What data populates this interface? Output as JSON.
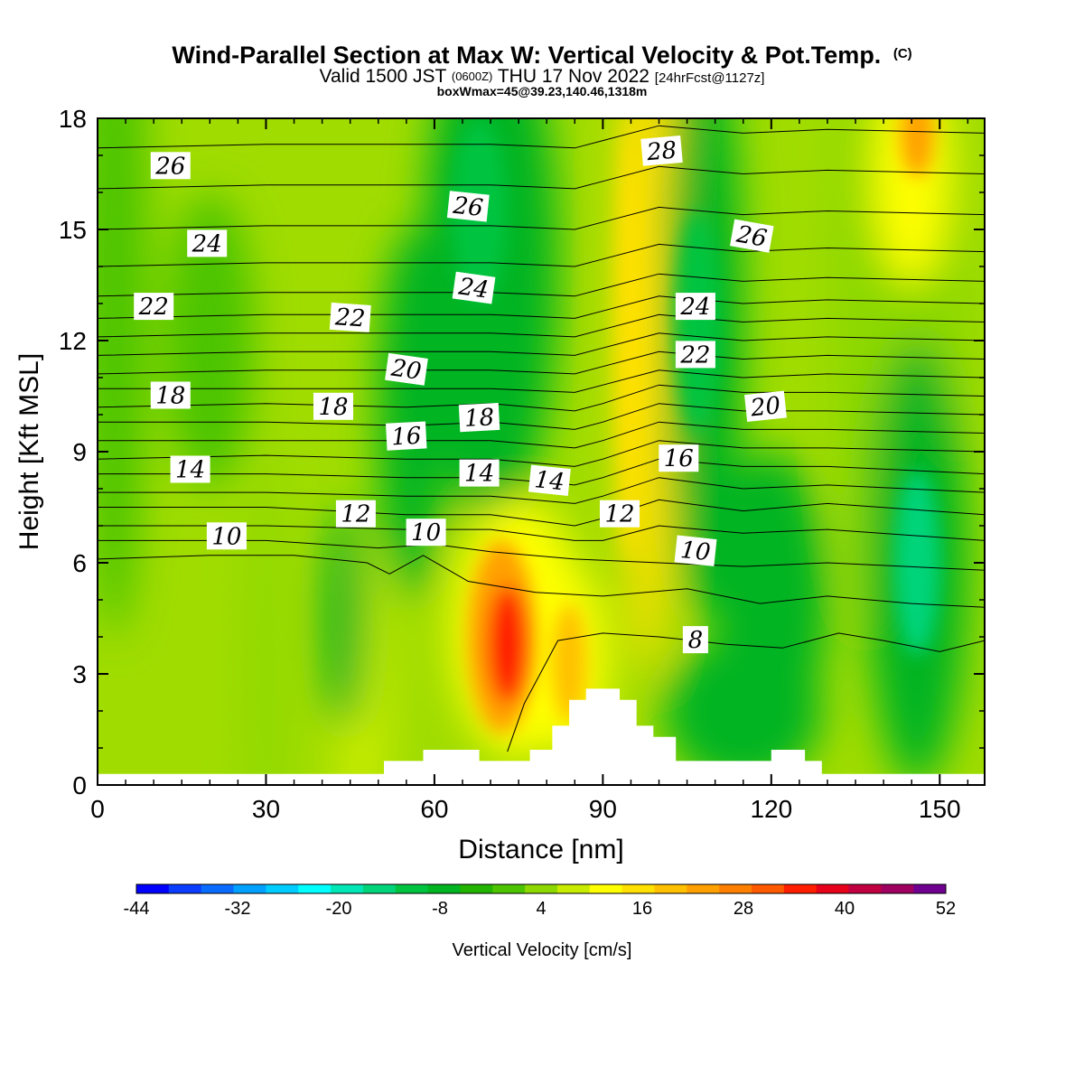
{
  "title": {
    "main": "Wind-Parallel Section at Max W: Vertical Velocity & Pot.Temp.",
    "main_mark": "(C)",
    "valid_prefix": "Valid 1500 JST",
    "valid_utc": "(0600Z)",
    "valid_date": "THU 17 Nov 2022",
    "fcst": "[24hrFcst@1127z]",
    "boxw": "boxWmax=45@39.23,140.46,1318m"
  },
  "chart_data": {
    "type": "heatmap",
    "xlabel": "Distance [nm]",
    "ylabel": "Height [Kft MSL]",
    "xlim": [
      0,
      158
    ],
    "ylim": [
      0,
      18
    ],
    "x_ticks": [
      "0",
      "30",
      "60",
      "90",
      "120",
      "150"
    ],
    "y_ticks": [
      "0",
      "3",
      "6",
      "9",
      "12",
      "15",
      "18"
    ],
    "colorbar": {
      "label": "Vertical Velocity [cm/s]",
      "ticks": [
        "-44",
        "-32",
        "-20",
        "-8",
        "4",
        "16",
        "28",
        "40",
        "52"
      ],
      "range": [
        -44,
        52
      ],
      "colors": [
        "#0000ff",
        "#0b3dff",
        "#0a6cff",
        "#00a0ff",
        "#00ccff",
        "#00ffff",
        "#00e6b4",
        "#00d47a",
        "#00c440",
        "#00b422",
        "#22b400",
        "#4cc400",
        "#8cd800",
        "#c8ec00",
        "#ffff00",
        "#ffe000",
        "#ffc000",
        "#ffa000",
        "#ff8000",
        "#ff5a00",
        "#ff1e00",
        "#e60019",
        "#c00040",
        "#a00060",
        "#700090"
      ]
    },
    "field_description_points": [
      {
        "x": 73,
        "y": 3.8,
        "w": 40
      },
      {
        "x": 84,
        "y": 3.2,
        "w": 22
      },
      {
        "x": 96,
        "y": 12,
        "w": 16
      },
      {
        "x": 146,
        "y": 17.5,
        "w": 20
      },
      {
        "x": 146,
        "y": 6,
        "w": -20
      },
      {
        "x": 70,
        "y": 15,
        "w": -12
      },
      {
        "x": 106,
        "y": 12,
        "w": -12
      },
      {
        "x": 44,
        "y": 4,
        "w": -12
      }
    ],
    "theta_contours": [
      {
        "level": 8,
        "points": [
          [
            73,
            0.9
          ],
          [
            76,
            2.2
          ],
          [
            82,
            3.9
          ],
          [
            90,
            4.1
          ],
          [
            100,
            4.0
          ],
          [
            112,
            3.8
          ],
          [
            122,
            3.7
          ],
          [
            132,
            4.1
          ],
          [
            140,
            3.9
          ],
          [
            150,
            3.6
          ],
          [
            158,
            3.9
          ]
        ]
      },
      {
        "level": 10,
        "points": [
          [
            0,
            6.1
          ],
          [
            20,
            6.2
          ],
          [
            35,
            6.2
          ],
          [
            48,
            6.0
          ],
          [
            52,
            5.7
          ],
          [
            58,
            6.2
          ],
          [
            66,
            5.5
          ],
          [
            78,
            5.2
          ],
          [
            90,
            5.1
          ],
          [
            105,
            5.3
          ],
          [
            118,
            4.9
          ],
          [
            130,
            5.1
          ],
          [
            145,
            4.9
          ],
          [
            158,
            4.8
          ]
        ]
      },
      {
        "level": 10.5,
        "points": [
          [
            0,
            6.6
          ],
          [
            30,
            6.6
          ],
          [
            50,
            6.4
          ],
          [
            60,
            6.5
          ],
          [
            70,
            6.3
          ],
          [
            85,
            6.1
          ],
          [
            100,
            6.0
          ],
          [
            115,
            5.9
          ],
          [
            130,
            6.0
          ],
          [
            158,
            5.8
          ]
        ]
      },
      {
        "level": 11,
        "points": [
          [
            0,
            7.0
          ],
          [
            30,
            7.0
          ],
          [
            55,
            6.9
          ],
          [
            70,
            6.9
          ],
          [
            85,
            6.6
          ],
          [
            90,
            6.6
          ],
          [
            100,
            7.0
          ],
          [
            115,
            6.8
          ],
          [
            130,
            6.9
          ],
          [
            158,
            6.6
          ]
        ]
      },
      {
        "level": 12,
        "points": [
          [
            0,
            7.5
          ],
          [
            30,
            7.5
          ],
          [
            55,
            7.3
          ],
          [
            70,
            7.3
          ],
          [
            85,
            7.0
          ],
          [
            90,
            7.2
          ],
          [
            100,
            7.7
          ],
          [
            115,
            7.4
          ],
          [
            130,
            7.6
          ],
          [
            158,
            7.3
          ]
        ]
      },
      {
        "level": 13,
        "points": [
          [
            0,
            7.9
          ],
          [
            30,
            7.9
          ],
          [
            55,
            7.8
          ],
          [
            70,
            7.8
          ],
          [
            85,
            7.6
          ],
          [
            90,
            7.8
          ],
          [
            100,
            8.3
          ],
          [
            115,
            8.0
          ],
          [
            130,
            8.1
          ],
          [
            158,
            7.9
          ]
        ]
      },
      {
        "level": 14,
        "points": [
          [
            0,
            8.4
          ],
          [
            30,
            8.4
          ],
          [
            55,
            8.3
          ],
          [
            70,
            8.3
          ],
          [
            85,
            8.1
          ],
          [
            90,
            8.3
          ],
          [
            100,
            8.8
          ],
          [
            115,
            8.6
          ],
          [
            130,
            8.6
          ],
          [
            158,
            8.4
          ]
        ]
      },
      {
        "level": 15,
        "points": [
          [
            0,
            8.8
          ],
          [
            30,
            8.9
          ],
          [
            55,
            8.8
          ],
          [
            70,
            8.8
          ],
          [
            85,
            8.6
          ],
          [
            90,
            8.8
          ],
          [
            100,
            9.3
          ],
          [
            115,
            9.1
          ],
          [
            130,
            9.1
          ],
          [
            158,
            9.0
          ]
        ]
      },
      {
        "level": 16,
        "points": [
          [
            0,
            9.3
          ],
          [
            30,
            9.3
          ],
          [
            55,
            9.3
          ],
          [
            70,
            9.3
          ],
          [
            85,
            9.1
          ],
          [
            90,
            9.3
          ],
          [
            100,
            9.8
          ],
          [
            115,
            9.6
          ],
          [
            130,
            9.6
          ],
          [
            158,
            9.5
          ]
        ]
      },
      {
        "level": 17,
        "points": [
          [
            0,
            9.8
          ],
          [
            30,
            9.8
          ],
          [
            55,
            9.7
          ],
          [
            70,
            9.8
          ],
          [
            85,
            9.6
          ],
          [
            90,
            9.8
          ],
          [
            100,
            10.3
          ],
          [
            115,
            10.1
          ],
          [
            130,
            10.1
          ],
          [
            158,
            10.0
          ]
        ]
      },
      {
        "level": 18,
        "points": [
          [
            0,
            10.2
          ],
          [
            30,
            10.3
          ],
          [
            55,
            10.2
          ],
          [
            70,
            10.3
          ],
          [
            85,
            10.1
          ],
          [
            90,
            10.3
          ],
          [
            100,
            10.8
          ],
          [
            115,
            10.6
          ],
          [
            130,
            10.6
          ],
          [
            158,
            10.5
          ]
        ]
      },
      {
        "level": 19,
        "points": [
          [
            0,
            10.7
          ],
          [
            30,
            10.7
          ],
          [
            55,
            10.7
          ],
          [
            70,
            10.7
          ],
          [
            85,
            10.6
          ],
          [
            90,
            10.8
          ],
          [
            100,
            11.2
          ],
          [
            115,
            11.0
          ],
          [
            130,
            11.1
          ],
          [
            158,
            11.0
          ]
        ]
      },
      {
        "level": 20,
        "points": [
          [
            0,
            11.1
          ],
          [
            30,
            11.2
          ],
          [
            55,
            11.2
          ],
          [
            70,
            11.2
          ],
          [
            85,
            11.1
          ],
          [
            90,
            11.3
          ],
          [
            100,
            11.7
          ],
          [
            115,
            11.5
          ],
          [
            130,
            11.6
          ],
          [
            158,
            11.5
          ]
        ]
      },
      {
        "level": 21,
        "points": [
          [
            0,
            11.6
          ],
          [
            30,
            11.7
          ],
          [
            55,
            11.7
          ],
          [
            70,
            11.7
          ],
          [
            85,
            11.6
          ],
          [
            90,
            11.8
          ],
          [
            100,
            12.2
          ],
          [
            115,
            12.0
          ],
          [
            130,
            12.1
          ],
          [
            158,
            12.0
          ]
        ]
      },
      {
        "level": 22,
        "points": [
          [
            0,
            12.1
          ],
          [
            30,
            12.2
          ],
          [
            55,
            12.2
          ],
          [
            70,
            12.2
          ],
          [
            85,
            12.1
          ],
          [
            90,
            12.3
          ],
          [
            100,
            12.7
          ],
          [
            115,
            12.5
          ],
          [
            130,
            12.6
          ],
          [
            158,
            12.5
          ]
        ]
      },
      {
        "level": 23,
        "points": [
          [
            0,
            12.6
          ],
          [
            30,
            12.7
          ],
          [
            55,
            12.7
          ],
          [
            70,
            12.7
          ],
          [
            85,
            12.6
          ],
          [
            90,
            12.8
          ],
          [
            100,
            13.2
          ],
          [
            115,
            13.0
          ],
          [
            130,
            13.1
          ],
          [
            158,
            13.0
          ]
        ]
      },
      {
        "level": 24,
        "points": [
          [
            0,
            13.2
          ],
          [
            30,
            13.3
          ],
          [
            55,
            13.3
          ],
          [
            70,
            13.3
          ],
          [
            85,
            13.2
          ],
          [
            90,
            13.4
          ],
          [
            100,
            13.8
          ],
          [
            115,
            13.6
          ],
          [
            130,
            13.7
          ],
          [
            158,
            13.6
          ]
        ]
      },
      {
        "level": 25,
        "points": [
          [
            0,
            14.0
          ],
          [
            30,
            14.1
          ],
          [
            55,
            14.1
          ],
          [
            70,
            14.1
          ],
          [
            85,
            14.0
          ],
          [
            90,
            14.2
          ],
          [
            100,
            14.6
          ],
          [
            115,
            14.4
          ],
          [
            130,
            14.5
          ],
          [
            158,
            14.4
          ]
        ]
      },
      {
        "level": 26,
        "points": [
          [
            0,
            15.0
          ],
          [
            30,
            15.1
          ],
          [
            55,
            15.1
          ],
          [
            70,
            15.1
          ],
          [
            85,
            15.0
          ],
          [
            90,
            15.2
          ],
          [
            100,
            15.6
          ],
          [
            115,
            15.4
          ],
          [
            130,
            15.5
          ],
          [
            158,
            15.4
          ]
        ]
      },
      {
        "level": 27,
        "points": [
          [
            0,
            16.1
          ],
          [
            30,
            16.2
          ],
          [
            55,
            16.2
          ],
          [
            70,
            16.2
          ],
          [
            85,
            16.1
          ],
          [
            90,
            16.3
          ],
          [
            100,
            16.7
          ],
          [
            115,
            16.5
          ],
          [
            130,
            16.6
          ],
          [
            158,
            16.5
          ]
        ]
      },
      {
        "level": 28,
        "points": [
          [
            0,
            17.2
          ],
          [
            30,
            17.3
          ],
          [
            55,
            17.3
          ],
          [
            70,
            17.3
          ],
          [
            85,
            17.2
          ],
          [
            90,
            17.4
          ],
          [
            100,
            17.8
          ],
          [
            115,
            17.6
          ],
          [
            130,
            17.7
          ],
          [
            158,
            17.6
          ]
        ]
      }
    ],
    "contour_labels": [
      {
        "text": "26",
        "x": 13,
        "y": 16.7,
        "rot": 0
      },
      {
        "text": "24",
        "x": 19.5,
        "y": 14.6,
        "rot": 0
      },
      {
        "text": "22",
        "x": 10,
        "y": 12.9,
        "rot": 0
      },
      {
        "text": "18",
        "x": 13,
        "y": 10.5,
        "rot": 0
      },
      {
        "text": "14",
        "x": 16.5,
        "y": 8.5,
        "rot": 0
      },
      {
        "text": "10",
        "x": 23,
        "y": 6.7,
        "rot": 0
      },
      {
        "text": "26",
        "x": 66,
        "y": 15.6,
        "rot": 6
      },
      {
        "text": "24",
        "x": 67,
        "y": 13.4,
        "rot": 8
      },
      {
        "text": "22",
        "x": 45,
        "y": 12.6,
        "rot": 4
      },
      {
        "text": "20",
        "x": 55,
        "y": 11.2,
        "rot": 8
      },
      {
        "text": "18",
        "x": 42,
        "y": 10.2,
        "rot": 0
      },
      {
        "text": "18",
        "x": 68,
        "y": 9.9,
        "rot": -3
      },
      {
        "text": "16",
        "x": 55,
        "y": 9.4,
        "rot": -3
      },
      {
        "text": "14",
        "x": 68,
        "y": 8.4,
        "rot": 0
      },
      {
        "text": "14",
        "x": 80.5,
        "y": 8.2,
        "rot": 6
      },
      {
        "text": "12",
        "x": 46,
        "y": 7.3,
        "rot": 0
      },
      {
        "text": "12",
        "x": 93,
        "y": 7.3,
        "rot": 0
      },
      {
        "text": "10",
        "x": 58.5,
        "y": 6.8,
        "rot": 0
      },
      {
        "text": "10",
        "x": 106.5,
        "y": 6.3,
        "rot": 6
      },
      {
        "text": "28",
        "x": 100.5,
        "y": 17.1,
        "rot": -5
      },
      {
        "text": "26",
        "x": 116.5,
        "y": 14.8,
        "rot": 10
      },
      {
        "text": "24",
        "x": 106.5,
        "y": 12.9,
        "rot": 0
      },
      {
        "text": "22",
        "x": 106.5,
        "y": 11.6,
        "rot": 0
      },
      {
        "text": "20",
        "x": 119,
        "y": 10.2,
        "rot": -6
      },
      {
        "text": "16",
        "x": 103.5,
        "y": 8.8,
        "rot": 0
      },
      {
        "text": "8",
        "x": 106.5,
        "y": 3.9,
        "rot": 0
      }
    ],
    "terrain": [
      [
        0,
        0.3
      ],
      [
        51,
        0.3
      ],
      [
        51,
        0.65
      ],
      [
        58,
        0.65
      ],
      [
        58,
        0.95
      ],
      [
        68,
        0.95
      ],
      [
        68,
        0.65
      ],
      [
        77,
        0.65
      ],
      [
        77,
        0.95
      ],
      [
        81,
        0.95
      ],
      [
        81,
        1.6
      ],
      [
        84,
        1.6
      ],
      [
        84,
        2.3
      ],
      [
        87,
        2.3
      ],
      [
        87,
        2.6
      ],
      [
        93,
        2.6
      ],
      [
        93,
        2.3
      ],
      [
        96,
        2.3
      ],
      [
        96,
        1.6
      ],
      [
        99,
        1.6
      ],
      [
        99,
        1.3
      ],
      [
        103,
        1.3
      ],
      [
        103,
        0.65
      ],
      [
        120,
        0.65
      ],
      [
        120,
        0.95
      ],
      [
        126,
        0.95
      ],
      [
        126,
        0.65
      ],
      [
        129,
        0.65
      ],
      [
        129,
        0.3
      ],
      [
        158,
        0.3
      ]
    ]
  }
}
